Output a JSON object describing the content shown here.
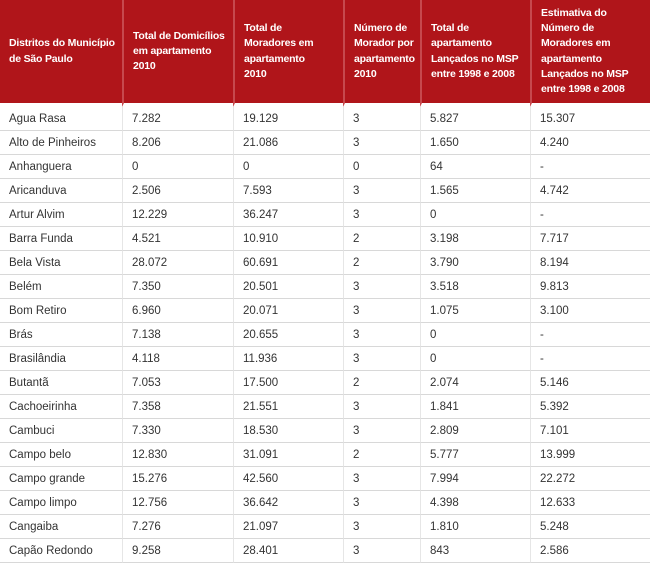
{
  "chart_data": {
    "type": "table",
    "columns": [
      "Distritos do Município de São Paulo",
      "Total de Domicílios em apartamento 2010",
      "Total de Moradores em apartamento 2010",
      "Número de Morador por apartamento 2010",
      "Total de apartamento Lançados no MSP entre 1998 e 2008",
      "Estimativa do Número de Moradores em apartamento Lançados no MSP entre 1998 e 2008"
    ],
    "rows": [
      [
        "Agua Rasa",
        "7.282",
        "19.129",
        "3",
        "5.827",
        "15.307"
      ],
      [
        "Alto de Pinheiros",
        "8.206",
        "21.086",
        "3",
        "1.650",
        "4.240"
      ],
      [
        "Anhanguera",
        "0",
        "0",
        "0",
        "64",
        "-"
      ],
      [
        "Aricanduva",
        "2.506",
        "7.593",
        "3",
        "1.565",
        "4.742"
      ],
      [
        "Artur Alvim",
        "12.229",
        "36.247",
        "3",
        "0",
        "-"
      ],
      [
        "Barra Funda",
        "4.521",
        "10.910",
        "2",
        "3.198",
        "7.717"
      ],
      [
        "Bela Vista",
        "28.072",
        "60.691",
        "2",
        "3.790",
        "8.194"
      ],
      [
        "Belém",
        "7.350",
        "20.501",
        "3",
        "3.518",
        "9.813"
      ],
      [
        "Bom Retiro",
        "6.960",
        "20.071",
        "3",
        "1.075",
        "3.100"
      ],
      [
        "Brás",
        "7.138",
        "20.655",
        "3",
        "0",
        "-"
      ],
      [
        "Brasilândia",
        "4.118",
        "11.936",
        "3",
        "0",
        "-"
      ],
      [
        "Butantã",
        "7.053",
        "17.500",
        "2",
        "2.074",
        "5.146"
      ],
      [
        "Cachoeirinha",
        "7.358",
        "21.551",
        "3",
        "1.841",
        "5.392"
      ],
      [
        "Cambuci",
        "7.330",
        "18.530",
        "3",
        "2.809",
        "7.101"
      ],
      [
        "Campo belo",
        "12.830",
        "31.091",
        "2",
        "5.777",
        "13.999"
      ],
      [
        "Campo grande",
        "15.276",
        "42.560",
        "3",
        "7.994",
        "22.272"
      ],
      [
        "Campo limpo",
        "12.756",
        "36.642",
        "3",
        "4.398",
        "12.633"
      ],
      [
        "Cangaiba",
        "7.276",
        "21.097",
        "3",
        "1.810",
        "5.248"
      ],
      [
        "Capão Redondo",
        "9.258",
        "28.401",
        "3",
        "843",
        "2.586"
      ]
    ]
  },
  "header_display": {
    "col0": "Distritos do Município\nde São Paulo",
    "col1": "Total de Domicílios\nem apartamento\n2010",
    "col2": "Total de\nMoradores em\napartamento\n2010",
    "col3": "Número de\nMorador por\napartamento\n2010",
    "col4": "Total de\napartamento\nLançados no MSP\nentre 1998 e 2008",
    "col5": "Estimativa do\nNúmero de\nMoradores em\napartamento\nLançados no MSP\nentre 1998 e 2008"
  },
  "colors": {
    "header_bg": "#b0151a",
    "header_text": "#ffffff",
    "header_divider": "#c6494d",
    "row_divider": "#d8d8d8",
    "column_divider": "#e6e6e6",
    "body_text": "#333333",
    "background": "#ffffff"
  }
}
